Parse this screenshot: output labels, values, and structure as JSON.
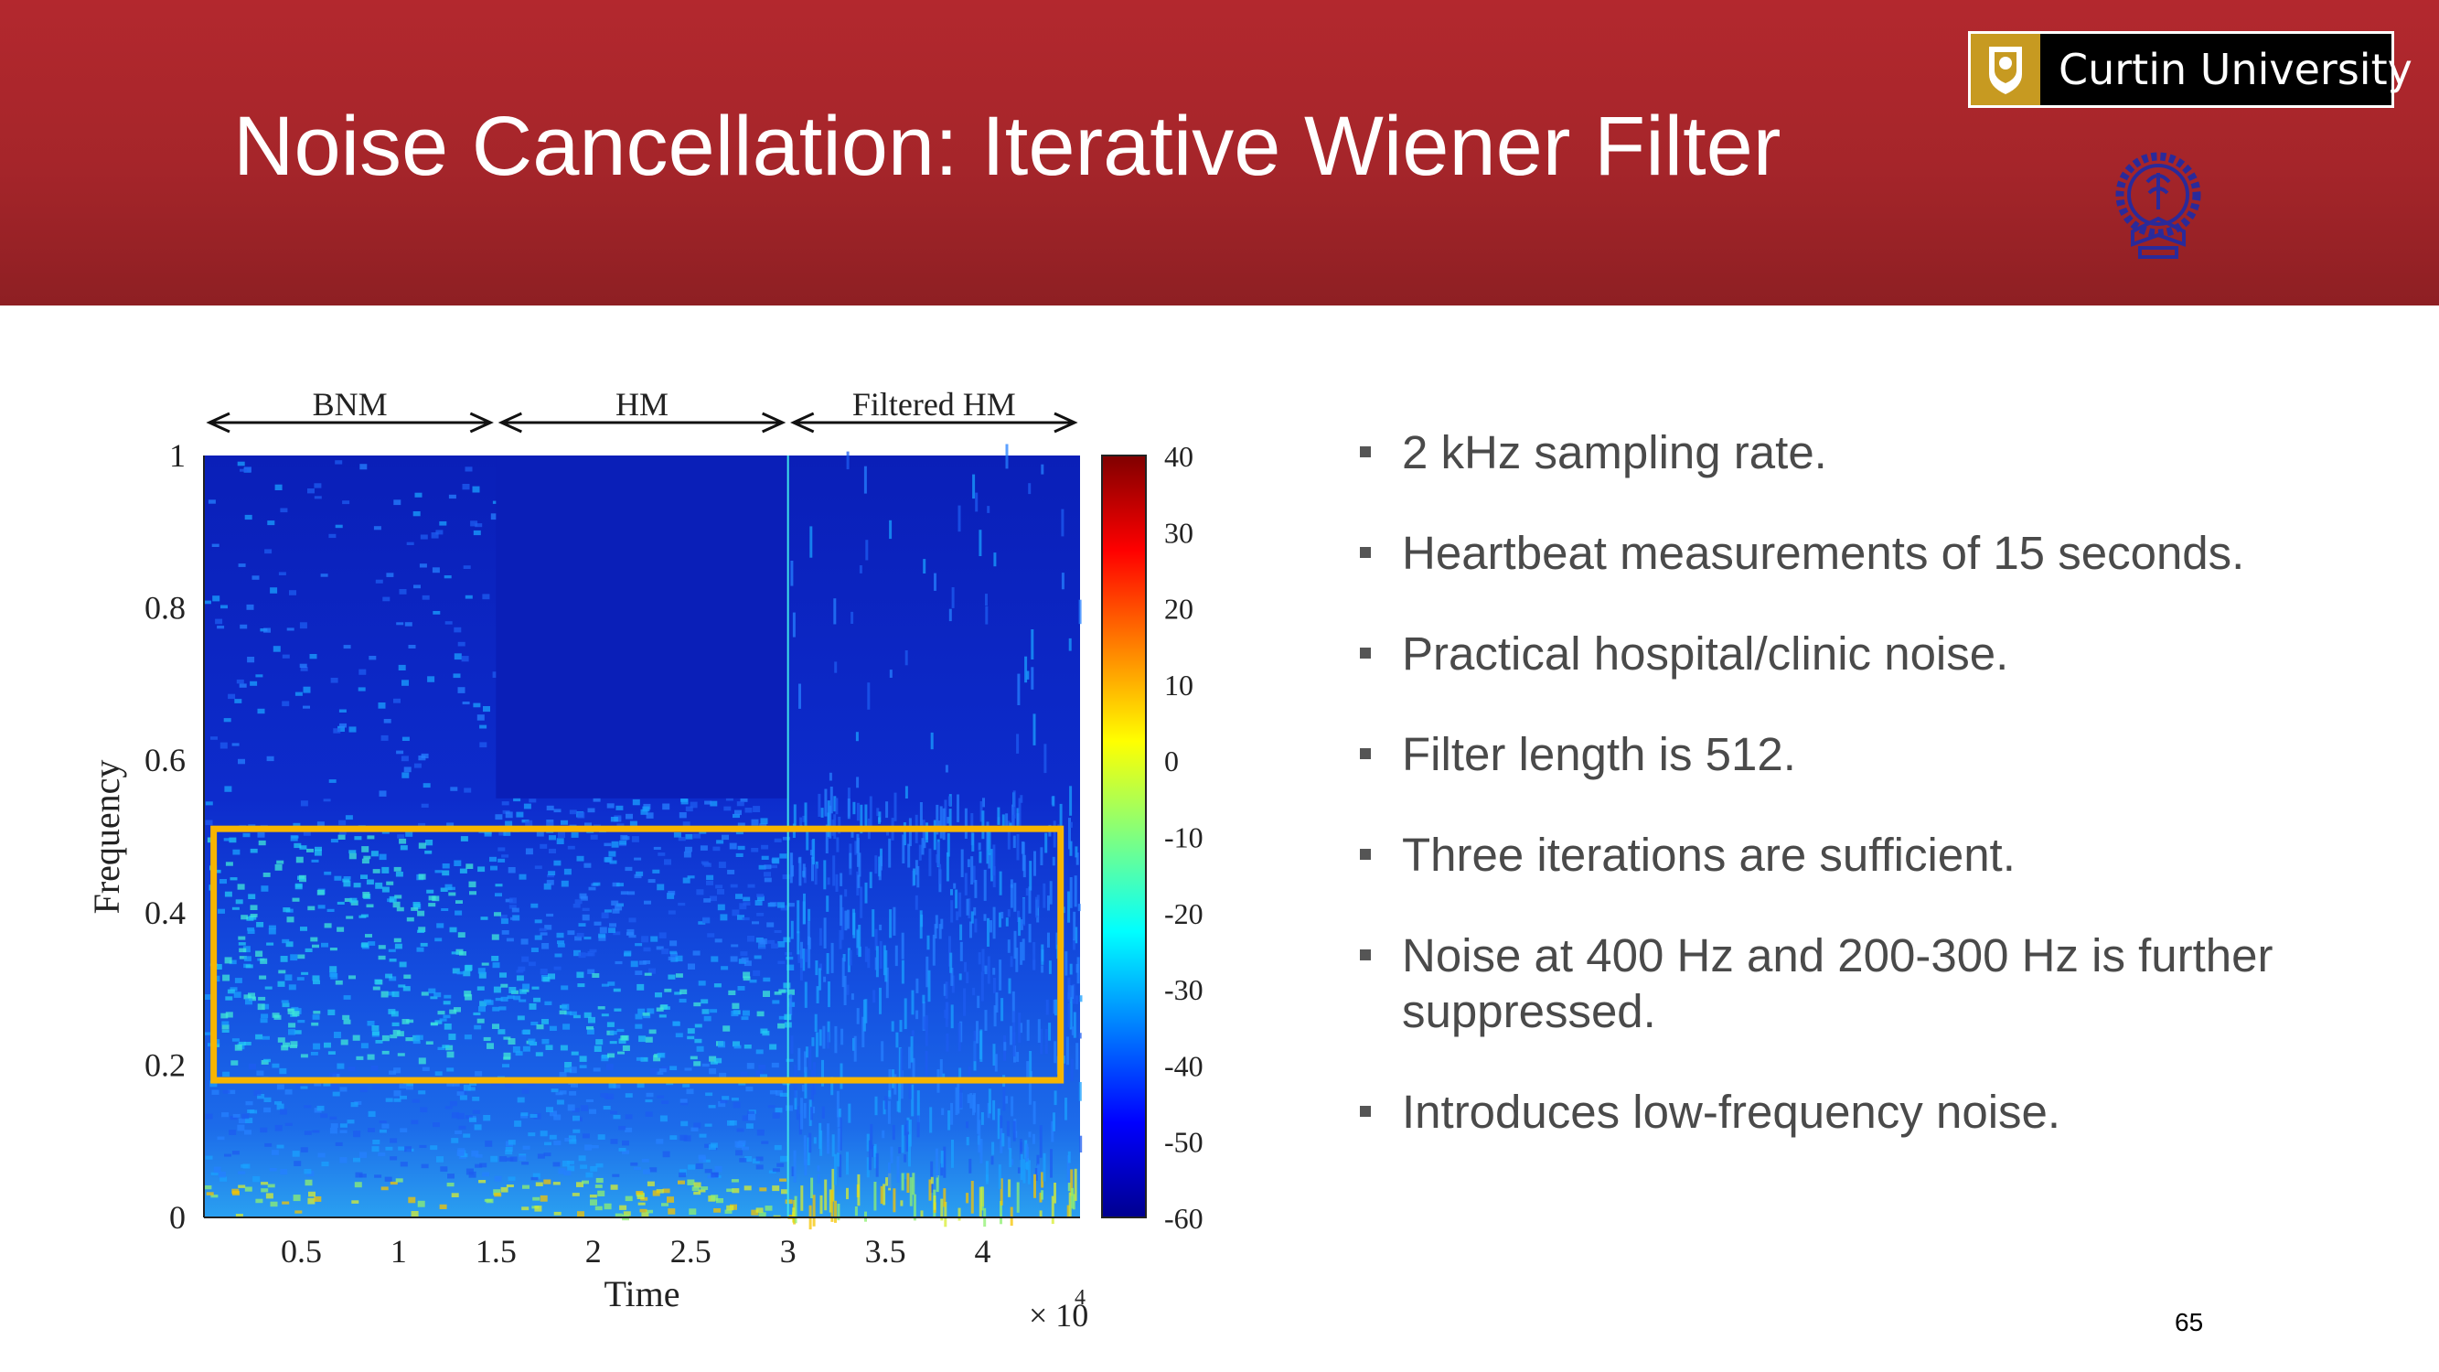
{
  "slide": {
    "title": "Noise Cancellation: Iterative Wiener Filter",
    "page_number": "65"
  },
  "logo": {
    "text": "Curtin University"
  },
  "colors": {
    "header": "#a5252a",
    "title_text": "#ffffff",
    "bullet_text": "#4a4a4a",
    "highlight_box": "#f7b500",
    "seal": "#2a2a9a"
  },
  "bullets": [
    "2 kHz sampling rate.",
    "Heartbeat measurements of 15 seconds.",
    "Practical hospital/clinic noise.",
    "Filter length is 512.",
    "Three iterations are sufficient.",
    "Noise at 400 Hz and 200-300 Hz is further suppressed.",
    "Introduces low-frequency noise."
  ],
  "chart_data": {
    "type": "heatmap",
    "xlabel": "Time",
    "ylabel": "Frequency",
    "x_multiplier": "× 10",
    "x_multiplier_exp": "4",
    "xlim": [
      0,
      4.5
    ],
    "ylim": [
      0,
      1
    ],
    "x_ticks": [
      "0.5",
      "1",
      "1.5",
      "2",
      "2.5",
      "3",
      "3.5",
      "4"
    ],
    "x_tick_values": [
      0.5,
      1,
      1.5,
      2,
      2.5,
      3,
      3.5,
      4
    ],
    "y_ticks": [
      "0",
      "0.2",
      "0.4",
      "0.6",
      "0.8",
      "1"
    ],
    "y_tick_values": [
      0,
      0.2,
      0.4,
      0.6,
      0.8,
      1
    ],
    "colorbar": {
      "range": [
        -60,
        40
      ],
      "ticks": [
        "40",
        "30",
        "20",
        "10",
        "0",
        "-10",
        "-20",
        "-30",
        "-40",
        "-50",
        "-60"
      ],
      "tick_values": [
        40,
        30,
        20,
        10,
        0,
        -10,
        -20,
        -30,
        -40,
        -50,
        -60
      ]
    },
    "segments": [
      {
        "label": "BNM",
        "x_start": 0,
        "x_end": 1.5
      },
      {
        "label": "HM",
        "x_start": 1.5,
        "x_end": 3
      },
      {
        "label": "Filtered HM",
        "x_start": 3,
        "x_end": 4.5
      }
    ],
    "highlight_box": {
      "x_start": 0.05,
      "x_end": 4.4,
      "y_start": 0.18,
      "y_end": 0.51
    }
  }
}
